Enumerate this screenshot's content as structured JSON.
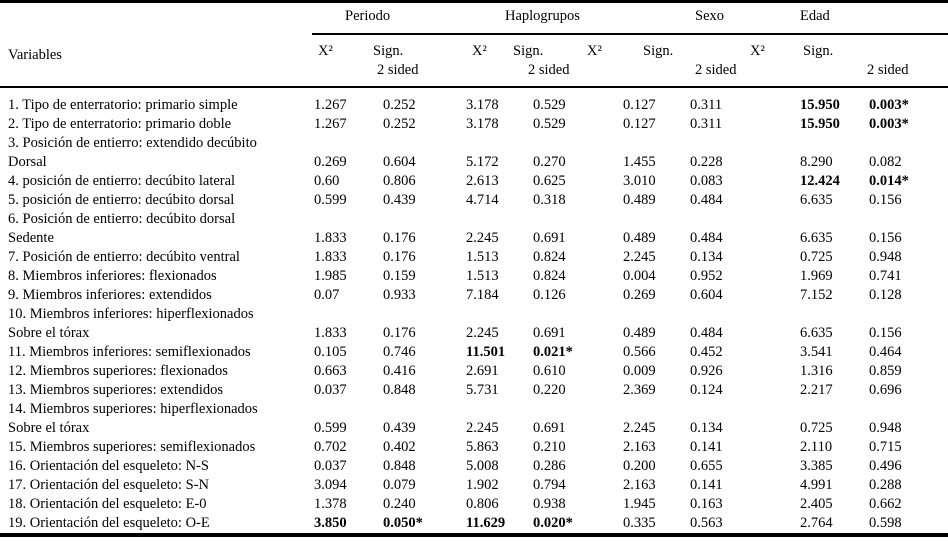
{
  "header": {
    "variables_label": "Variables",
    "groups": [
      "Periodo",
      "Haplogrupos",
      "Sexo",
      "Edad"
    ],
    "sub": {
      "x2": "X²",
      "sign": "Sign.",
      "two_sided": "2 sided"
    }
  },
  "table": {
    "group_keys": [
      "periodo",
      "haplogrupos",
      "sexo",
      "edad"
    ],
    "rows": [
      {
        "label": "1. Tipo de enterratorio: primario simple",
        "cells": [
          {
            "x2": "1.267",
            "sig": "0.252",
            "bold": false
          },
          {
            "x2": "3.178",
            "sig": "0.529",
            "bold": false
          },
          {
            "x2": "0.127",
            "sig": "0.311",
            "bold": false
          },
          {
            "x2": "15.950",
            "sig": "0.003*",
            "bold": true
          }
        ]
      },
      {
        "label": "2. Tipo de enterratorio: primario doble",
        "cells": [
          {
            "x2": "1.267",
            "sig": "0.252",
            "bold": false
          },
          {
            "x2": "3.178",
            "sig": "0.529",
            "bold": false
          },
          {
            "x2": "0.127",
            "sig": "0.311",
            "bold": false
          },
          {
            "x2": "15.950",
            "sig": "0.003*",
            "bold": true
          }
        ]
      },
      {
        "label": "3. Posición de entierro: extendido decúbito",
        "label2": "Dorsal",
        "cells": [
          {
            "x2": "0.269",
            "sig": "0.604",
            "bold": false
          },
          {
            "x2": "5.172",
            "sig": "0.270",
            "bold": false
          },
          {
            "x2": "1.455",
            "sig": "0.228",
            "bold": false
          },
          {
            "x2": "8.290",
            "sig": "0.082",
            "bold": false
          }
        ]
      },
      {
        "label": "4. posición de entierro: decúbito lateral",
        "cells": [
          {
            "x2": "0.60",
            "sig": "0.806",
            "bold": false
          },
          {
            "x2": "2.613",
            "sig": "0.625",
            "bold": false
          },
          {
            "x2": "3.010",
            "sig": "0.083",
            "bold": false
          },
          {
            "x2": "12.424",
            "sig": "0.014*",
            "bold": true
          }
        ]
      },
      {
        "label": "5. posición de entierro: decúbito dorsal",
        "cells": [
          {
            "x2": "0.599",
            "sig": "0.439",
            "bold": false
          },
          {
            "x2": "4.714",
            "sig": "0.318",
            "bold": false
          },
          {
            "x2": "0.489",
            "sig": "0.484",
            "bold": false
          },
          {
            "x2": "6.635",
            "sig": "0.156",
            "bold": false
          }
        ]
      },
      {
        "label": "6. Posición de entierro: decúbito dorsal",
        "label2": "Sedente",
        "cells": [
          {
            "x2": "1.833",
            "sig": "0.176",
            "bold": false
          },
          {
            "x2": "2.245",
            "sig": "0.691",
            "bold": false
          },
          {
            "x2": "0.489",
            "sig": "0.484",
            "bold": false
          },
          {
            "x2": "6.635",
            "sig": "0.156",
            "bold": false
          }
        ]
      },
      {
        "label": "7. Posición de entierro: decúbito ventral",
        "cells": [
          {
            "x2": "1.833",
            "sig": "0.176",
            "bold": false
          },
          {
            "x2": "1.513",
            "sig": "0.824",
            "bold": false
          },
          {
            "x2": "2.245",
            "sig": "0.134",
            "bold": false
          },
          {
            "x2": "0.725",
            "sig": "0.948",
            "bold": false
          }
        ]
      },
      {
        "label": "8. Miembros inferiores: flexionados",
        "cells": [
          {
            "x2": "1.985",
            "sig": "0.159",
            "bold": false
          },
          {
            "x2": "1.513",
            "sig": "0.824",
            "bold": false
          },
          {
            "x2": "0.004",
            "sig": "0.952",
            "bold": false
          },
          {
            "x2": "1.969",
            "sig": "0.741",
            "bold": false
          }
        ]
      },
      {
        "label": "9. Miembros inferiores: extendidos",
        "cells": [
          {
            "x2": "0.07",
            "sig": "0.933",
            "bold": false
          },
          {
            "x2": "7.184",
            "sig": "0.126",
            "bold": false
          },
          {
            "x2": "0.269",
            "sig": "0.604",
            "bold": false
          },
          {
            "x2": "7.152",
            "sig": "0.128",
            "bold": false
          }
        ]
      },
      {
        "label": "10. Miembros inferiores: hiperflexionados",
        "label2": "Sobre el tórax",
        "cells": [
          {
            "x2": "1.833",
            "sig": "0.176",
            "bold": false
          },
          {
            "x2": "2.245",
            "sig": "0.691",
            "bold": false
          },
          {
            "x2": "0.489",
            "sig": "0.484",
            "bold": false
          },
          {
            "x2": "6.635",
            "sig": "0.156",
            "bold": false
          }
        ]
      },
      {
        "label": "11. Miembros inferiores: semiflexionados",
        "cells": [
          {
            "x2": "0.105",
            "sig": "0.746",
            "bold": false
          },
          {
            "x2": "11.501",
            "sig": "0.021*",
            "bold": true
          },
          {
            "x2": "0.566",
            "sig": "0.452",
            "bold": false
          },
          {
            "x2": "3.541",
            "sig": "0.464",
            "bold": false
          }
        ]
      },
      {
        "label": "12. Miembros superiores: flexionados",
        "cells": [
          {
            "x2": "0.663",
            "sig": "0.416",
            "bold": false
          },
          {
            "x2": "2.691",
            "sig": "0.610",
            "bold": false
          },
          {
            "x2": "0.009",
            "sig": "0.926",
            "bold": false
          },
          {
            "x2": "1.316",
            "sig": "0.859",
            "bold": false
          }
        ]
      },
      {
        "label": "13. Miembros superiores: extendidos",
        "cells": [
          {
            "x2": "0.037",
            "sig": "0.848",
            "bold": false
          },
          {
            "x2": "5.731",
            "sig": "0.220",
            "bold": false
          },
          {
            "x2": "2.369",
            "sig": "0.124",
            "bold": false
          },
          {
            "x2": "2.217",
            "sig": "0.696",
            "bold": false
          }
        ]
      },
      {
        "label": "14. Miembros superiores: hiperflexionados",
        "label2": "Sobre el tórax",
        "cells": [
          {
            "x2": "0.599",
            "sig": "0.439",
            "bold": false
          },
          {
            "x2": "2.245",
            "sig": "0.691",
            "bold": false
          },
          {
            "x2": "2.245",
            "sig": "0.134",
            "bold": false
          },
          {
            "x2": "0.725",
            "sig": "0.948",
            "bold": false
          }
        ]
      },
      {
        "label": "15. Miembros superiores: semiflexionados",
        "cells": [
          {
            "x2": "0.702",
            "sig": "0.402",
            "bold": false
          },
          {
            "x2": "5.863",
            "sig": "0.210",
            "bold": false
          },
          {
            "x2": "2.163",
            "sig": "0.141",
            "bold": false
          },
          {
            "x2": "2.110",
            "sig": "0.715",
            "bold": false
          }
        ]
      },
      {
        "label": "16. Orientación del esqueleto: N-S",
        "cells": [
          {
            "x2": "0.037",
            "sig": "0.848",
            "bold": false
          },
          {
            "x2": "5.008",
            "sig": "0.286",
            "bold": false
          },
          {
            "x2": "0.200",
            "sig": "0.655",
            "bold": false
          },
          {
            "x2": "3.385",
            "sig": "0.496",
            "bold": false
          }
        ]
      },
      {
        "label": "17. Orientación del esqueleto: S-N",
        "cells": [
          {
            "x2": "3.094",
            "sig": "0.079",
            "bold": false
          },
          {
            "x2": "1.902",
            "sig": "0.794",
            "bold": false
          },
          {
            "x2": "2.163",
            "sig": "0.141",
            "bold": false
          },
          {
            "x2": "4.991",
            "sig": "0.288",
            "bold": false
          }
        ]
      },
      {
        "label": "18. Orientación del esqueleto: E-0",
        "cells": [
          {
            "x2": "1.378",
            "sig": "0.240",
            "bold": false
          },
          {
            "x2": "0.806",
            "sig": "0.938",
            "bold": false
          },
          {
            "x2": "1.945",
            "sig": "0.163",
            "bold": false
          },
          {
            "x2": "2.405",
            "sig": "0.662",
            "bold": false
          }
        ]
      },
      {
        "label": "19. Orientación del esqueleto: O-E",
        "cells": [
          {
            "x2": "3.850",
            "sig": "0.050*",
            "bold": true
          },
          {
            "x2": "11.629",
            "sig": "0.020*",
            "bold": true
          },
          {
            "x2": "0.335",
            "sig": "0.563",
            "bold": false
          },
          {
            "x2": "2.764",
            "sig": "0.598",
            "bold": false
          }
        ]
      }
    ]
  }
}
